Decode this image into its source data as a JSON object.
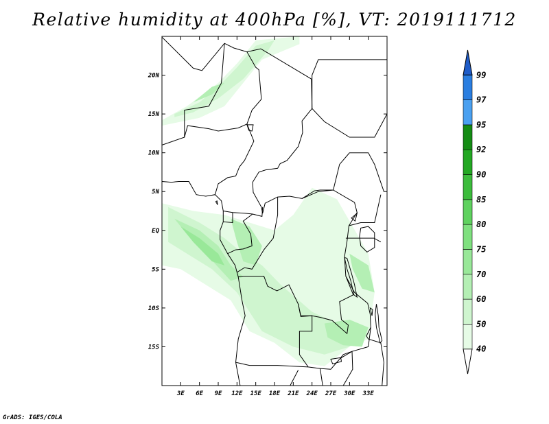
{
  "title": "Relative humidity at 400hPa [%], VT: 2019111712",
  "credit": "GrADS: IGES/COLA",
  "map": {
    "lon_range": [
      0,
      36
    ],
    "lat_range": [
      -20,
      25
    ],
    "lat_ticks": [
      {
        "value": 20,
        "label": "20N"
      },
      {
        "value": 15,
        "label": "15N"
      },
      {
        "value": 10,
        "label": "10N"
      },
      {
        "value": 5,
        "label": "5N"
      },
      {
        "value": 0,
        "label": "EQ"
      },
      {
        "value": -5,
        "label": "5S"
      },
      {
        "value": -10,
        "label": "10S"
      },
      {
        "value": -15,
        "label": "15S"
      }
    ],
    "lon_ticks": [
      {
        "value": 3,
        "label": "3E"
      },
      {
        "value": 6,
        "label": "6E"
      },
      {
        "value": 9,
        "label": "9E"
      },
      {
        "value": 12,
        "label": "12E"
      },
      {
        "value": 15,
        "label": "15E"
      },
      {
        "value": 18,
        "label": "18E"
      },
      {
        "value": 21,
        "label": "21E"
      },
      {
        "value": 24,
        "label": "24E"
      },
      {
        "value": 27,
        "label": "27E"
      },
      {
        "value": 30,
        "label": "30E"
      },
      {
        "value": 33,
        "label": "33E"
      }
    ]
  },
  "colorbar": {
    "levels": [
      "40",
      "50",
      "60",
      "70",
      "75",
      "80",
      "85",
      "90",
      "92",
      "95",
      "97",
      "99"
    ],
    "colors": [
      "#ffffff",
      "#e6fbe6",
      "#cff5cf",
      "#b4efb4",
      "#99e899",
      "#7fe07f",
      "#5fd25f",
      "#3cbc3c",
      "#23a823",
      "#148c14",
      "#4aa0f0",
      "#2a7ee0",
      "#1e5cc8"
    ]
  },
  "humidity_regions": [
    {
      "name": "sahel-band",
      "level": 1,
      "points": [
        [
          0,
          14.2
        ],
        [
          4,
          16
        ],
        [
          9,
          19
        ],
        [
          12,
          21.5
        ],
        [
          15,
          24.5
        ],
        [
          22,
          25
        ],
        [
          22,
          24
        ],
        [
          16,
          22
        ],
        [
          13,
          19
        ],
        [
          10,
          16
        ],
        [
          6,
          14.5
        ],
        [
          0,
          13.5
        ]
      ]
    },
    {
      "name": "sahel-band-core",
      "level": 2,
      "points": [
        [
          2,
          15
        ],
        [
          6,
          16.5
        ],
        [
          9,
          18.5
        ],
        [
          12,
          21
        ],
        [
          15,
          23.8
        ],
        [
          18,
          24.5
        ],
        [
          17,
          23.2
        ],
        [
          13,
          19.5
        ],
        [
          9,
          17
        ],
        [
          5,
          15.2
        ],
        [
          2,
          14.6
        ]
      ]
    },
    {
      "name": "sahel-band-inner",
      "level": 3,
      "points": [
        [
          5,
          16.5
        ],
        [
          8,
          17.5
        ],
        [
          10,
          19
        ],
        [
          8,
          18.5
        ]
      ]
    },
    {
      "name": "central-africa",
      "level": 1,
      "points": [
        [
          0,
          3.5
        ],
        [
          5,
          2.5
        ],
        [
          10,
          2
        ],
        [
          14,
          1
        ],
        [
          18,
          0
        ],
        [
          21,
          2
        ],
        [
          24,
          5.5
        ],
        [
          28,
          4
        ],
        [
          33,
          -3
        ],
        [
          34,
          -8
        ],
        [
          33,
          -14
        ],
        [
          30,
          -15
        ],
        [
          26,
          -17.5
        ],
        [
          22,
          -17
        ],
        [
          18,
          -14.5
        ],
        [
          14,
          -13
        ],
        [
          11,
          -9
        ],
        [
          7,
          -7
        ],
        [
          3,
          -5
        ],
        [
          0,
          -4.5
        ]
      ]
    },
    {
      "name": "central-africa-mid",
      "level": 2,
      "points": [
        [
          1,
          3
        ],
        [
          6,
          1
        ],
        [
          10,
          -1
        ],
        [
          13,
          -3
        ],
        [
          16,
          -4.5
        ],
        [
          19,
          -7
        ],
        [
          24,
          -10.5
        ],
        [
          28,
          -12
        ],
        [
          31,
          -13
        ],
        [
          30,
          -15
        ],
        [
          26,
          -16
        ],
        [
          21,
          -15
        ],
        [
          16,
          -13
        ],
        [
          12,
          -8
        ],
        [
          8,
          -5
        ],
        [
          4,
          -3
        ],
        [
          1,
          -1.5
        ]
      ]
    },
    {
      "name": "coast-core",
      "level": 3,
      "points": [
        [
          2,
          1.5
        ],
        [
          6,
          0
        ],
        [
          9,
          -2
        ],
        [
          11,
          -4.5
        ],
        [
          13,
          -6
        ],
        [
          11,
          -6.5
        ],
        [
          7,
          -3
        ],
        [
          4,
          -0.5
        ]
      ]
    },
    {
      "name": "coast-core-2",
      "level": 4,
      "points": [
        [
          3,
          0.5
        ],
        [
          6,
          -1
        ],
        [
          9,
          -3
        ],
        [
          10,
          -4.5
        ],
        [
          8,
          -4
        ],
        [
          5,
          -1.5
        ]
      ]
    },
    {
      "name": "congo-core",
      "level": 3,
      "points": [
        [
          11,
          1.5
        ],
        [
          14,
          0.5
        ],
        [
          16,
          -2
        ],
        [
          15,
          -4.5
        ],
        [
          13,
          -4
        ],
        [
          12,
          -1.5
        ]
      ]
    },
    {
      "name": "east-core",
      "level": 3,
      "points": [
        [
          30,
          -3
        ],
        [
          33,
          -4.5
        ],
        [
          34,
          -8
        ],
        [
          32,
          -7.5
        ],
        [
          30.5,
          -5
        ]
      ]
    },
    {
      "name": "zambia-core",
      "level": 3,
      "points": [
        [
          26,
          -12
        ],
        [
          30,
          -11.5
        ],
        [
          33,
          -12.5
        ],
        [
          32,
          -15
        ],
        [
          29,
          -14.8
        ],
        [
          26.5,
          -13.8
        ]
      ]
    }
  ],
  "country_borders": [
    [
      [
        0,
        6.3
      ],
      [
        1.5,
        6.2
      ],
      [
        2.7,
        6.3
      ],
      [
        4.3,
        6.3
      ],
      [
        5.5,
        4.6
      ],
      [
        7,
        4.4
      ],
      [
        8.5,
        4.6
      ],
      [
        9.5,
        3.8
      ],
      [
        9.8,
        2.5
      ],
      [
        9.8,
        1.1
      ],
      [
        9.3,
        0
      ],
      [
        9.3,
        -1.2
      ],
      [
        10.5,
        -3
      ],
      [
        11.7,
        -4.5
      ],
      [
        12.2,
        -6
      ],
      [
        12.8,
        -9
      ],
      [
        13.3,
        -11
      ],
      [
        12.2,
        -14
      ],
      [
        11.8,
        -17
      ],
      [
        12.5,
        -20
      ]
    ],
    [
      [
        0,
        24.9
      ],
      [
        5,
        20.9
      ],
      [
        6.4,
        20.6
      ],
      [
        10,
        24.1
      ],
      [
        11.5,
        23.5
      ],
      [
        13.6,
        23
      ],
      [
        15.8,
        23.4
      ],
      [
        23.9,
        19.5
      ],
      [
        24,
        15.7
      ],
      [
        22.4,
        14.1
      ],
      [
        22.5,
        12.6
      ],
      [
        21.8,
        10.8
      ],
      [
        20,
        9
      ],
      [
        18.9,
        8.6
      ],
      [
        18.5,
        8
      ],
      [
        16.6,
        7.8
      ],
      [
        15.5,
        7.5
      ],
      [
        14.5,
        6.2
      ],
      [
        14.6,
        4.9
      ],
      [
        15.9,
        3
      ],
      [
        16.1,
        2.2
      ],
      [
        16.5,
        3.5
      ],
      [
        18.5,
        4.3
      ],
      [
        20.4,
        4.4
      ],
      [
        22.4,
        4.1
      ],
      [
        24.4,
        5.1
      ],
      [
        25.3,
        5.2
      ],
      [
        27.4,
        5.2
      ],
      [
        30.8,
        3.6
      ],
      [
        31.2,
        2.3
      ],
      [
        29.9,
        0.6
      ],
      [
        29.6,
        -1.4
      ],
      [
        29.2,
        -3.4
      ],
      [
        29.4,
        -5.9
      ],
      [
        30.6,
        -8.3
      ],
      [
        28.4,
        -9.2
      ],
      [
        28.7,
        -11.5
      ],
      [
        29.8,
        -12.2
      ],
      [
        29.6,
        -13.3
      ],
      [
        27.2,
        -11.6
      ],
      [
        25.3,
        -11.2
      ],
      [
        24,
        -11
      ],
      [
        22.2,
        -11.1
      ],
      [
        21.8,
        -9.5
      ],
      [
        20.3,
        -7
      ],
      [
        18.4,
        -7.8
      ],
      [
        16.9,
        -7.2
      ],
      [
        16.3,
        -5.9
      ],
      [
        13,
        -5.9
      ],
      [
        12.2,
        -6
      ]
    ],
    [
      [
        10,
        24.1
      ],
      [
        9.5,
        19
      ],
      [
        7.5,
        16
      ],
      [
        3.6,
        15.5
      ],
      [
        3.6,
        12
      ],
      [
        0,
        11
      ]
    ],
    [
      [
        3.6,
        12
      ],
      [
        4.1,
        13.5
      ],
      [
        7.5,
        13.1
      ],
      [
        9,
        12.8
      ],
      [
        12.2,
        13.2
      ],
      [
        13.6,
        13.7
      ],
      [
        14.2,
        12.5
      ],
      [
        14.7,
        11.5
      ],
      [
        13.2,
        9
      ],
      [
        12.4,
        8.2
      ],
      [
        11.8,
        7
      ],
      [
        10.5,
        6.8
      ],
      [
        9,
        6
      ],
      [
        8.5,
        4.6
      ]
    ],
    [
      [
        13.6,
        23
      ],
      [
        15,
        21
      ],
      [
        15.5,
        20.7
      ],
      [
        15.9,
        16.9
      ],
      [
        14.4,
        15.5
      ],
      [
        13.6,
        13.7
      ]
    ],
    [
      [
        24,
        15.7
      ],
      [
        24,
        20
      ],
      [
        25,
        22
      ],
      [
        36,
        22
      ]
    ],
    [
      [
        24,
        15.7
      ],
      [
        26,
        14
      ],
      [
        30,
        12
      ],
      [
        34,
        12
      ],
      [
        36,
        15
      ]
    ],
    [
      [
        22.4,
        4.1
      ],
      [
        25,
        5
      ],
      [
        27.4,
        5.2
      ],
      [
        28.4,
        8.5
      ],
      [
        30,
        10
      ],
      [
        33,
        10
      ],
      [
        34,
        8.5
      ],
      [
        35.5,
        5
      ]
    ],
    [
      [
        18.5,
        4.3
      ],
      [
        18.5,
        2
      ],
      [
        17.8,
        -1
      ],
      [
        16.3,
        -2.5
      ],
      [
        14.4,
        -5
      ],
      [
        13.2,
        -4.8
      ],
      [
        12,
        -5.4
      ]
    ],
    [
      [
        9.8,
        2.5
      ],
      [
        11.3,
        2.3
      ],
      [
        13.3,
        2.2
      ],
      [
        14.5,
        2.1
      ],
      [
        16,
        1.8
      ],
      [
        16.1,
        3
      ]
    ],
    [
      [
        9.8,
        1.1
      ],
      [
        11.3,
        1
      ],
      [
        11.3,
        2.3
      ]
    ],
    [
      [
        14.5,
        2.1
      ],
      [
        13,
        1.2
      ],
      [
        14.2,
        -0.5
      ],
      [
        14.4,
        -2
      ],
      [
        13,
        -2.4
      ],
      [
        11.8,
        -2.5
      ],
      [
        10.5,
        -3
      ]
    ],
    [
      [
        21.8,
        -9.5
      ],
      [
        22.2,
        -11
      ],
      [
        24,
        -11
      ],
      [
        24,
        -13
      ],
      [
        22,
        -13
      ],
      [
        22,
        -16
      ],
      [
        23.4,
        -17.6
      ],
      [
        25.3,
        -17.8
      ],
      [
        27,
        -17.9
      ],
      [
        28.5,
        -16.5
      ],
      [
        30.4,
        -15.6
      ],
      [
        33,
        -15
      ]
    ],
    [
      [
        11.8,
        -17
      ],
      [
        14,
        -17.4
      ],
      [
        18.5,
        -17.4
      ],
      [
        23.4,
        -17.6
      ]
    ],
    [
      [
        29.9,
        0.6
      ],
      [
        31.8,
        1
      ],
      [
        34,
        1
      ],
      [
        35,
        4.6
      ]
    ],
    [
      [
        29.4,
        -1
      ],
      [
        30.6,
        -1
      ],
      [
        31.8,
        -1
      ],
      [
        33.9,
        -1
      ],
      [
        35,
        -1.5
      ]
    ],
    [
      [
        29.4,
        -5.9
      ],
      [
        30.8,
        -8
      ],
      [
        32.9,
        -9.4
      ],
      [
        33.3,
        -10.8
      ],
      [
        33.4,
        -12.5
      ],
      [
        32.7,
        -13.6
      ],
      [
        33,
        -14
      ],
      [
        35,
        -14.5
      ],
      [
        35.5,
        -17
      ],
      [
        35.2,
        -20
      ]
    ],
    [
      [
        30.4,
        -15.6
      ],
      [
        30.5,
        -17.9
      ],
      [
        29,
        -20
      ]
    ],
    [
      [
        28.5,
        -16.5
      ],
      [
        29,
        -16
      ],
      [
        30.4,
        -15.6
      ]
    ],
    [
      [
        21.8,
        -18
      ],
      [
        20.5,
        -20
      ]
    ],
    [
      [
        25.3,
        -17.8
      ],
      [
        25.7,
        -20
      ]
    ],
    [
      [
        33.4,
        -12.5
      ],
      [
        33,
        -15
      ]
    ]
  ],
  "lakes": [
    [
      [
        29.2,
        -3.5
      ],
      [
        29.6,
        -5
      ],
      [
        30.2,
        -6.5
      ],
      [
        30.7,
        -8.3
      ],
      [
        31.2,
        -8.6
      ],
      [
        30.8,
        -7
      ],
      [
        30.3,
        -5.5
      ],
      [
        29.6,
        -3.6
      ]
    ],
    [
      [
        34.3,
        -9.5
      ],
      [
        34.6,
        -11
      ],
      [
        34.7,
        -12.5
      ],
      [
        35.2,
        -14.2
      ],
      [
        34.9,
        -14.5
      ],
      [
        34.3,
        -12.5
      ],
      [
        34.1,
        -10.8
      ]
    ],
    [
      [
        31.8,
        0.3
      ],
      [
        33,
        0.5
      ],
      [
        34,
        -0.3
      ],
      [
        34,
        -2.2
      ],
      [
        32.8,
        -2.8
      ],
      [
        31.8,
        -2
      ],
      [
        31.6,
        -0.8
      ]
    ],
    [
      [
        30.3,
        1.6
      ],
      [
        31.2,
        2.2
      ],
      [
        30.9,
        1.2
      ]
    ],
    [
      [
        13.6,
        13.6
      ],
      [
        14.6,
        13.6
      ],
      [
        14.4,
        12.8
      ],
      [
        13.9,
        12.9
      ]
    ],
    [
      [
        27,
        -16.6
      ],
      [
        28.6,
        -16.4
      ],
      [
        28.7,
        -16.9
      ],
      [
        27.3,
        -17.2
      ]
    ],
    [
      [
        33.3,
        -10
      ],
      [
        33.7,
        -10.2
      ],
      [
        33.6,
        -11
      ]
    ],
    [
      [
        8.6,
        3.7
      ],
      [
        8.9,
        3.3
      ],
      [
        8.8,
        3.8
      ]
    ]
  ]
}
